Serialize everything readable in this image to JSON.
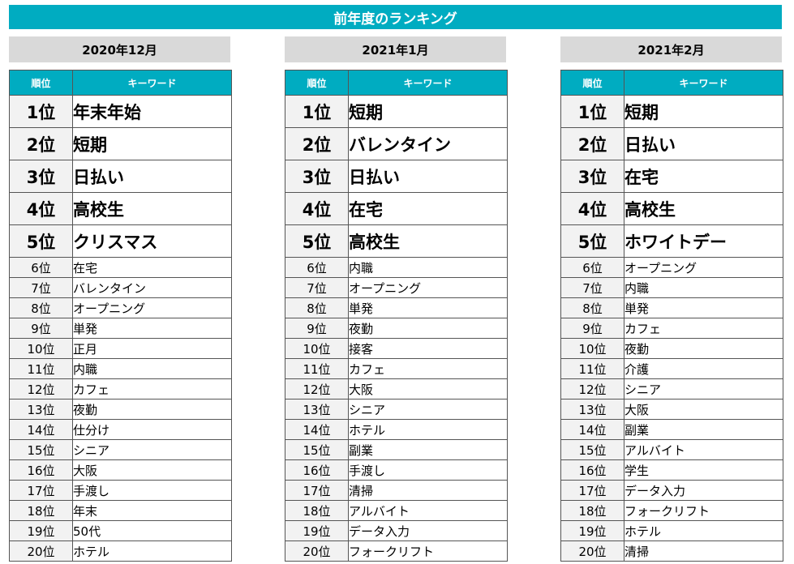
{
  "title": "前年度のランキング",
  "header": {
    "rank": "順位",
    "keyword": "キーワード"
  },
  "columns": [
    {
      "month": "2020年12月",
      "rows": [
        {
          "rank": "1位",
          "keyword": "年末年始"
        },
        {
          "rank": "2位",
          "keyword": "短期"
        },
        {
          "rank": "3位",
          "keyword": "日払い"
        },
        {
          "rank": "4位",
          "keyword": "高校生"
        },
        {
          "rank": "5位",
          "keyword": "クリスマス"
        },
        {
          "rank": "6位",
          "keyword": "在宅"
        },
        {
          "rank": "7位",
          "keyword": "バレンタイン"
        },
        {
          "rank": "8位",
          "keyword": "オープニング"
        },
        {
          "rank": "9位",
          "keyword": "単発"
        },
        {
          "rank": "10位",
          "keyword": "正月"
        },
        {
          "rank": "11位",
          "keyword": "内職"
        },
        {
          "rank": "12位",
          "keyword": "カフェ"
        },
        {
          "rank": "13位",
          "keyword": "夜勤"
        },
        {
          "rank": "14位",
          "keyword": "仕分け"
        },
        {
          "rank": "15位",
          "keyword": "シニア"
        },
        {
          "rank": "16位",
          "keyword": "大阪"
        },
        {
          "rank": "17位",
          "keyword": "手渡し"
        },
        {
          "rank": "18位",
          "keyword": "年末"
        },
        {
          "rank": "19位",
          "keyword": "50代"
        },
        {
          "rank": "20位",
          "keyword": "ホテル"
        }
      ]
    },
    {
      "month": "2021年1月",
      "rows": [
        {
          "rank": "1位",
          "keyword": "短期"
        },
        {
          "rank": "2位",
          "keyword": "バレンタイン"
        },
        {
          "rank": "3位",
          "keyword": "日払い"
        },
        {
          "rank": "4位",
          "keyword": "在宅"
        },
        {
          "rank": "5位",
          "keyword": "高校生"
        },
        {
          "rank": "6位",
          "keyword": "内職"
        },
        {
          "rank": "7位",
          "keyword": "オープニング"
        },
        {
          "rank": "8位",
          "keyword": "単発"
        },
        {
          "rank": "9位",
          "keyword": "夜勤"
        },
        {
          "rank": "10位",
          "keyword": "接客"
        },
        {
          "rank": "11位",
          "keyword": "カフェ"
        },
        {
          "rank": "12位",
          "keyword": "大阪"
        },
        {
          "rank": "13位",
          "keyword": "シニア"
        },
        {
          "rank": "14位",
          "keyword": "ホテル"
        },
        {
          "rank": "15位",
          "keyword": "副業"
        },
        {
          "rank": "16位",
          "keyword": "手渡し"
        },
        {
          "rank": "17位",
          "keyword": "清掃"
        },
        {
          "rank": "18位",
          "keyword": "アルバイト"
        },
        {
          "rank": "19位",
          "keyword": "データ入力"
        },
        {
          "rank": "20位",
          "keyword": "フォークリフト"
        }
      ]
    },
    {
      "month": "2021年2月",
      "rows": [
        {
          "rank": "1位",
          "keyword": "短期"
        },
        {
          "rank": "2位",
          "keyword": "日払い"
        },
        {
          "rank": "3位",
          "keyword": "在宅"
        },
        {
          "rank": "4位",
          "keyword": "高校生"
        },
        {
          "rank": "5位",
          "keyword": "ホワイトデー"
        },
        {
          "rank": "6位",
          "keyword": "オープニング"
        },
        {
          "rank": "7位",
          "keyword": "内職"
        },
        {
          "rank": "8位",
          "keyword": "単発"
        },
        {
          "rank": "9位",
          "keyword": "カフェ"
        },
        {
          "rank": "10位",
          "keyword": "夜勤"
        },
        {
          "rank": "11位",
          "keyword": "介護"
        },
        {
          "rank": "12位",
          "keyword": "シニア"
        },
        {
          "rank": "13位",
          "keyword": "大阪"
        },
        {
          "rank": "14位",
          "keyword": "副業"
        },
        {
          "rank": "15位",
          "keyword": "アルバイト"
        },
        {
          "rank": "16位",
          "keyword": "学生"
        },
        {
          "rank": "17位",
          "keyword": "データ入力"
        },
        {
          "rank": "18位",
          "keyword": "フォークリフト"
        },
        {
          "rank": "19位",
          "keyword": "ホテル"
        },
        {
          "rank": "20位",
          "keyword": "清掃"
        }
      ]
    }
  ],
  "colors": {
    "accent": "#00acc1",
    "month_header_bg": "#d9d9d9",
    "rank_cell_bg": "#f2f2f2"
  }
}
